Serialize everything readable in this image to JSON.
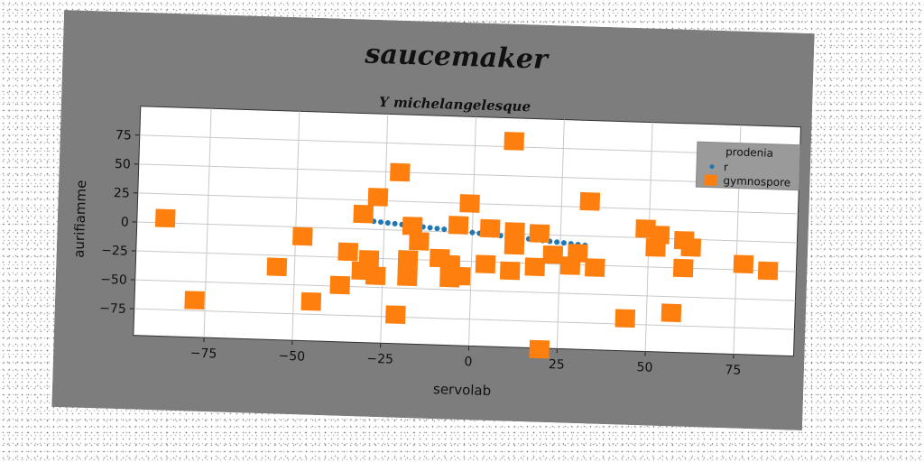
{
  "chart_data": {
    "type": "scatter",
    "title": "saucemaker",
    "subtitle": "Y michelangelesque",
    "xlabel": "servolab",
    "ylabel": "aurifiamme",
    "xlim": [
      -95,
      92
    ],
    "ylim": [
      -98,
      100
    ],
    "xticks": [
      -75,
      -50,
      -25,
      0,
      25,
      50,
      75
    ],
    "yticks": [
      -75,
      -50,
      -25,
      0,
      25,
      50,
      75
    ],
    "grid": true,
    "legend": {
      "placement": "top-right",
      "title": "prodenia",
      "entries": [
        "r",
        "gymnospore"
      ]
    },
    "series": [
      {
        "name": "r",
        "color": "#1f77b4",
        "marker": "small-circle",
        "points": [
          [
            -28,
            7
          ],
          [
            -26,
            6.5
          ],
          [
            -24,
            6
          ],
          [
            -22,
            5.5
          ],
          [
            -20,
            5
          ],
          [
            -18,
            4.5
          ],
          [
            -16,
            4
          ],
          [
            -14,
            3.5
          ],
          [
            -12,
            3
          ],
          [
            -10,
            2.5
          ],
          [
            -8,
            2
          ],
          [
            -6,
            1.5
          ],
          [
            -4,
            1
          ],
          [
            -2,
            0.5
          ],
          [
            0,
            0
          ],
          [
            2,
            -0.5
          ],
          [
            4,
            -1
          ],
          [
            6,
            -1.5
          ],
          [
            8,
            -2
          ],
          [
            10,
            -2.5
          ],
          [
            12,
            -3
          ],
          [
            14,
            -3.5
          ],
          [
            16,
            -4
          ],
          [
            18,
            -4.5
          ],
          [
            20,
            -5
          ],
          [
            22,
            -5.5
          ],
          [
            24,
            -6
          ],
          [
            26,
            -6.5
          ],
          [
            28,
            -7
          ],
          [
            30,
            -7.5
          ],
          [
            32,
            -8
          ]
        ]
      },
      {
        "name": "gymnospore",
        "color": "#ff7f0e",
        "marker": "large-square",
        "points": [
          [
            11,
            80
          ],
          [
            -21,
            50
          ],
          [
            -27,
            28
          ],
          [
            33,
            30
          ],
          [
            -1,
            25
          ],
          [
            -31,
            13
          ],
          [
            -17,
            4
          ],
          [
            -4,
            6
          ],
          [
            5,
            4
          ],
          [
            12,
            2
          ],
          [
            19,
            1
          ],
          [
            49,
            8
          ],
          [
            53,
            3
          ],
          [
            60,
            -1
          ],
          [
            62,
            -7
          ],
          [
            52,
            -8
          ],
          [
            -87,
            4
          ],
          [
            -48,
            -8
          ],
          [
            -15,
            -9
          ],
          [
            12,
            -10
          ],
          [
            -35,
            -20
          ],
          [
            -29,
            -26
          ],
          [
            -18,
            -25
          ],
          [
            -9,
            -23
          ],
          [
            -6,
            -28
          ],
          [
            4,
            -27
          ],
          [
            11,
            -32
          ],
          [
            18,
            -28
          ],
          [
            23,
            -17
          ],
          [
            28,
            -26
          ],
          [
            30,
            -15
          ],
          [
            35,
            -27
          ],
          [
            60,
            -25
          ],
          [
            77,
            -20
          ],
          [
            84,
            -25
          ],
          [
            -55,
            -35
          ],
          [
            -31,
            -36
          ],
          [
            -27,
            -40
          ],
          [
            -18,
            -40
          ],
          [
            -6,
            -40
          ],
          [
            -3,
            -38
          ],
          [
            -37,
            -49
          ],
          [
            -45,
            -64
          ],
          [
            -78,
            -66
          ],
          [
            -21,
            -73
          ],
          [
            44,
            -70
          ],
          [
            57,
            -64
          ],
          [
            20,
            -99
          ]
        ]
      }
    ]
  }
}
